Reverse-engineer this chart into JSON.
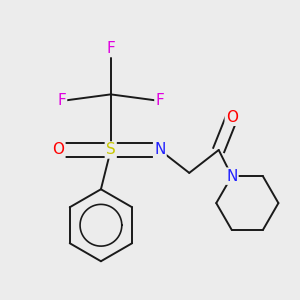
{
  "background_color": "#ececec",
  "bond_color": "#1a1a1a",
  "atom_colors": {
    "F": "#e000e0",
    "S": "#c8c800",
    "O": "#ff0000",
    "N_imine": "#2020ff",
    "N_pip": "#2020ff"
  },
  "font_size": 11,
  "figsize": [
    3.0,
    3.0
  ],
  "dpi": 100,
  "lw": 1.4
}
